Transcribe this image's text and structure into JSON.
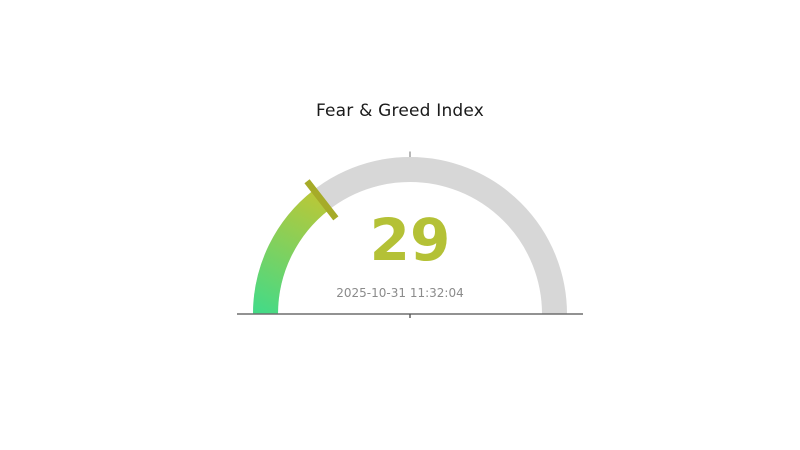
{
  "chart_data": {
    "type": "gauge",
    "title": "Fear & Greed Index",
    "value": 29,
    "min": 0,
    "max": 100,
    "timestamp": "2025-10-31 11:32:04",
    "start_angle_deg": 180,
    "end_angle_deg": 0,
    "legend": "none",
    "colors": {
      "track": "#d7d7d7",
      "gradient_start": "#45da86",
      "gradient_end": "#b7c839",
      "needle": "#a6ab28",
      "value_text": "#b4c136",
      "timestamp_text": "#8b8b8b",
      "title_text": "#1a1a1a",
      "baseline": "#6e6e6e",
      "background": "#ffffff"
    }
  }
}
